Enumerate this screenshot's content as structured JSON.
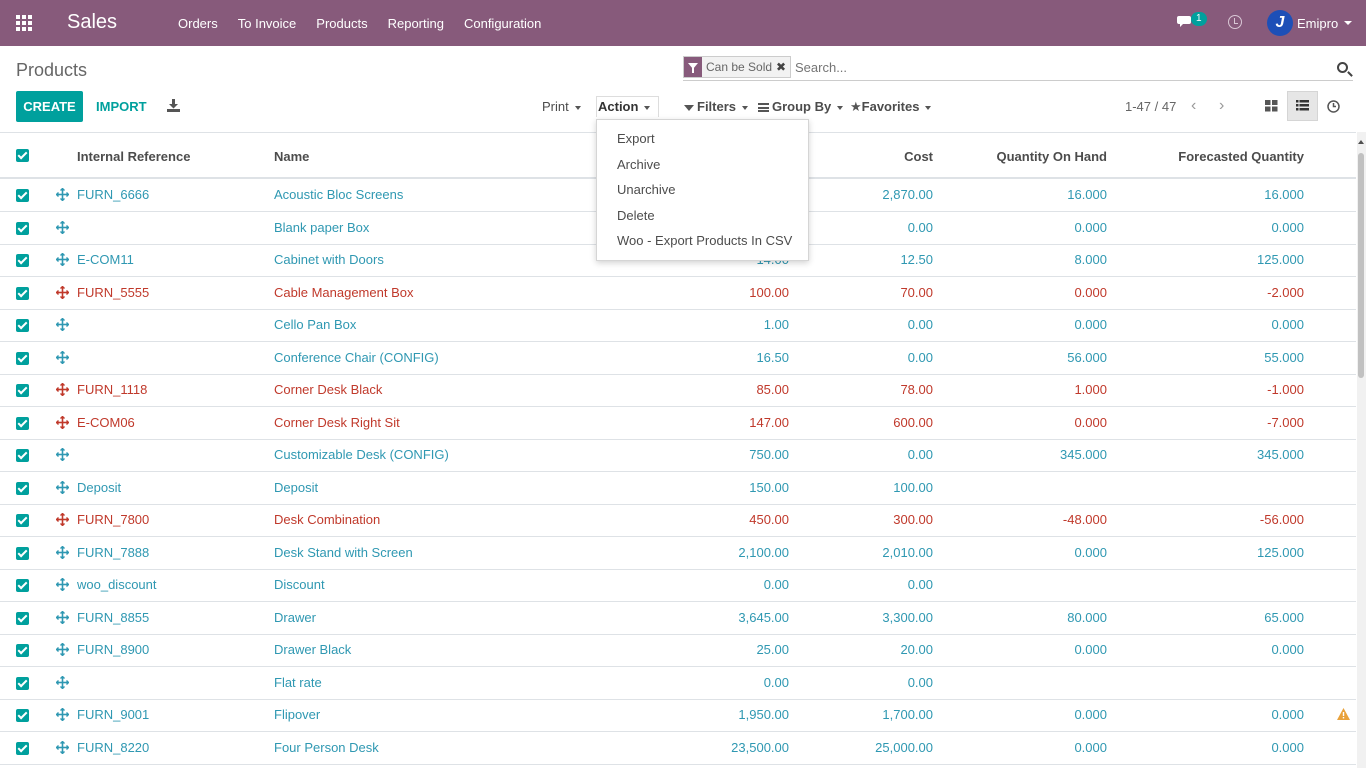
{
  "navbar": {
    "app_name": "Sales",
    "menu": [
      "Orders",
      "To Invoice",
      "Products",
      "Reporting",
      "Configuration"
    ],
    "chat_count": "1",
    "user_name": "Emipro",
    "avatar_initial": "J",
    "color": "#875a7b"
  },
  "control": {
    "breadcrumb": "Products",
    "facet_label": "Can be Sold",
    "search_placeholder": "Search...",
    "create_label": "CREATE",
    "import_label": "IMPORT",
    "print_label": "Print",
    "action_label": "Action",
    "filters_label": "Filters",
    "groupby_label": "Group By",
    "favorites_label": "Favorites",
    "pager": "1-47 / 47",
    "accent": "#00a09d"
  },
  "action_menu": [
    "Export",
    "Archive",
    "Unarchive",
    "Delete",
    "Woo - Export Products In CSV"
  ],
  "table": {
    "headers": {
      "internal_ref": "Internal Reference",
      "name": "Name",
      "cost": "Cost",
      "qty_on_hand": "Quantity On Hand",
      "forecasted": "Forecasted Quantity"
    },
    "rows": [
      {
        "ref": "FURN_6666",
        "name": "Acoustic Bloc Screens",
        "price": "",
        "cost": "2,870.00",
        "qty": "16.000",
        "forecast": "16.000",
        "status": "blue"
      },
      {
        "ref": "",
        "name": "Blank paper Box",
        "price": "",
        "cost": "0.00",
        "qty": "0.000",
        "forecast": "0.000",
        "status": "blue"
      },
      {
        "ref": "E-COM11",
        "name": "Cabinet with Doors",
        "price": "14.00",
        "cost": "12.50",
        "qty": "8.000",
        "forecast": "125.000",
        "status": "blue"
      },
      {
        "ref": "FURN_5555",
        "name": "Cable Management Box",
        "price": "100.00",
        "cost": "70.00",
        "qty": "0.000",
        "forecast": "-2.000",
        "status": "red"
      },
      {
        "ref": "",
        "name": "Cello Pan Box",
        "price": "1.00",
        "cost": "0.00",
        "qty": "0.000",
        "forecast": "0.000",
        "status": "blue"
      },
      {
        "ref": "",
        "name": "Conference Chair (CONFIG)",
        "price": "16.50",
        "cost": "0.00",
        "qty": "56.000",
        "forecast": "55.000",
        "status": "blue"
      },
      {
        "ref": "FURN_1118",
        "name": "Corner Desk Black",
        "price": "85.00",
        "cost": "78.00",
        "qty": "1.000",
        "forecast": "-1.000",
        "status": "red"
      },
      {
        "ref": "E-COM06",
        "name": "Corner Desk Right Sit",
        "price": "147.00",
        "cost": "600.00",
        "qty": "0.000",
        "forecast": "-7.000",
        "status": "red"
      },
      {
        "ref": "",
        "name": "Customizable Desk (CONFIG)",
        "price": "750.00",
        "cost": "0.00",
        "qty": "345.000",
        "forecast": "345.000",
        "status": "blue"
      },
      {
        "ref": "Deposit",
        "name": "Deposit",
        "price": "150.00",
        "cost": "100.00",
        "qty": "",
        "forecast": "",
        "status": "blue"
      },
      {
        "ref": "FURN_7800",
        "name": "Desk Combination",
        "price": "450.00",
        "cost": "300.00",
        "qty": "-48.000",
        "forecast": "-56.000",
        "status": "red"
      },
      {
        "ref": "FURN_7888",
        "name": "Desk Stand with Screen",
        "price": "2,100.00",
        "cost": "2,010.00",
        "qty": "0.000",
        "forecast": "125.000",
        "status": "blue"
      },
      {
        "ref": "woo_discount",
        "name": "Discount",
        "price": "0.00",
        "cost": "0.00",
        "qty": "",
        "forecast": "",
        "status": "blue"
      },
      {
        "ref": "FURN_8855",
        "name": "Drawer",
        "price": "3,645.00",
        "cost": "3,300.00",
        "qty": "80.000",
        "forecast": "65.000",
        "status": "blue"
      },
      {
        "ref": "FURN_8900",
        "name": "Drawer Black",
        "price": "25.00",
        "cost": "20.00",
        "qty": "0.000",
        "forecast": "0.000",
        "status": "blue"
      },
      {
        "ref": "",
        "name": "Flat rate",
        "price": "0.00",
        "cost": "0.00",
        "qty": "",
        "forecast": "",
        "status": "blue"
      },
      {
        "ref": "FURN_9001",
        "name": "Flipover",
        "price": "1,950.00",
        "cost": "1,700.00",
        "qty": "0.000",
        "forecast": "0.000",
        "status": "blue",
        "warning": true
      },
      {
        "ref": "FURN_8220",
        "name": "Four Person Desk",
        "price": "23,500.00",
        "cost": "25,000.00",
        "qty": "0.000",
        "forecast": "0.000",
        "status": "blue"
      }
    ]
  }
}
